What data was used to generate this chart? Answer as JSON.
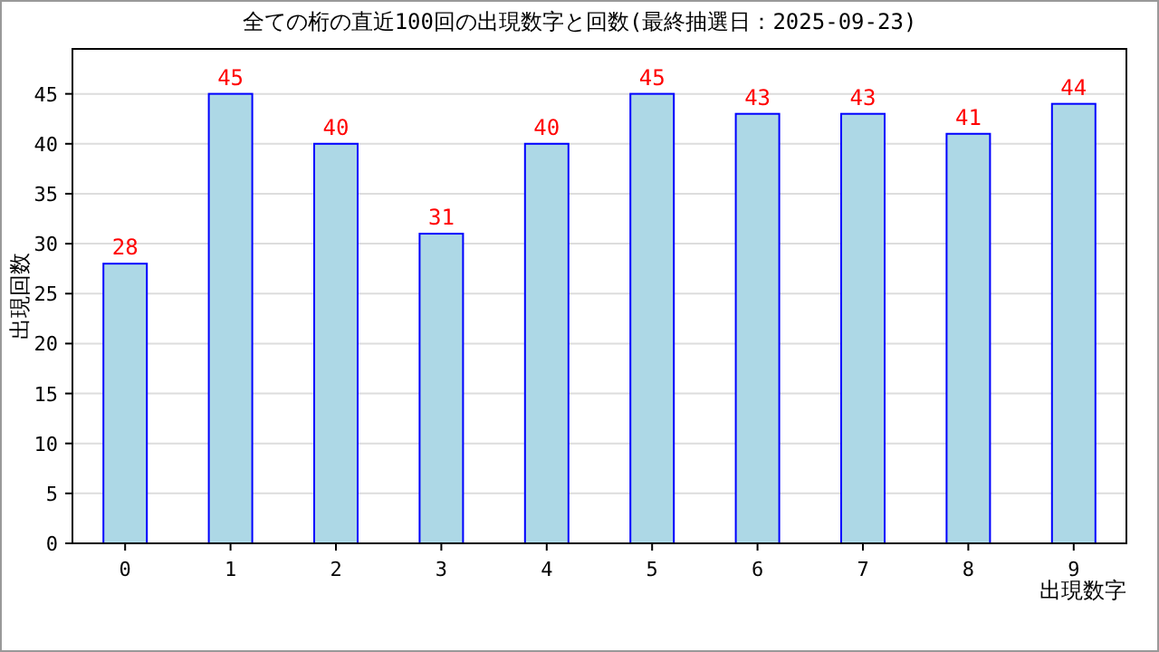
{
  "chart_data": {
    "type": "bar",
    "title": "全ての桁の直近100回の出現数字と回数(最終抽選日：2025-09-23)",
    "xlabel": "出現数字",
    "ylabel": "出現回数",
    "categories": [
      "0",
      "1",
      "2",
      "3",
      "4",
      "5",
      "6",
      "7",
      "8",
      "9"
    ],
    "values": [
      28,
      45,
      40,
      31,
      40,
      45,
      43,
      43,
      41,
      44
    ],
    "color": "#add8e6",
    "data_labels": true,
    "grid": "y",
    "ylim": [
      0,
      49.5
    ],
    "yticks": [
      0,
      5,
      10,
      15,
      20,
      25,
      30,
      35,
      40,
      45
    ]
  }
}
